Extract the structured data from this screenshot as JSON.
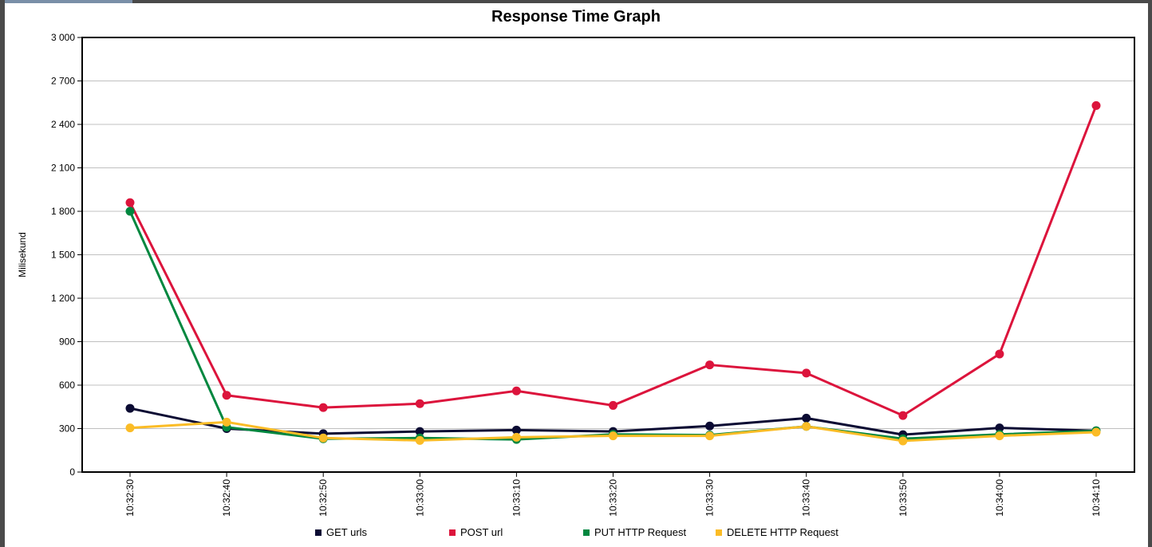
{
  "chart_data": {
    "type": "line",
    "title": "Response Time Graph",
    "xlabel": "",
    "ylabel": "Milisekund",
    "ylim": [
      0,
      3000
    ],
    "yticks": [
      "0",
      "300",
      "600",
      "900",
      "1 200",
      "1 500",
      "1 800",
      "2 100",
      "2 400",
      "2 700",
      "3 000"
    ],
    "ytick_values": [
      0,
      300,
      600,
      900,
      1200,
      1500,
      1800,
      2100,
      2400,
      2700,
      3000
    ],
    "categories": [
      "10:32:30",
      "10:32:40",
      "10:32:50",
      "10:33:00",
      "10:33:10",
      "10:33:20",
      "10:33:30",
      "10:33:40",
      "10:33:50",
      "10:34:00",
      "10:34:10"
    ],
    "grid": true,
    "legend_position": "bottom",
    "series": [
      {
        "name": "GET urls",
        "color": "#0b0b33",
        "values": [
          440,
          300,
          265,
          280,
          290,
          280,
          318,
          372,
          258,
          305,
          285
        ]
      },
      {
        "name": "POST url",
        "color": "#dc143c",
        "values": [
          1860,
          530,
          445,
          472,
          560,
          460,
          740,
          683,
          390,
          815,
          2530
        ]
      },
      {
        "name": "PUT HTTP Request",
        "color": "#00873f",
        "values": [
          1800,
          310,
          230,
          235,
          225,
          260,
          255,
          315,
          230,
          260,
          285
        ]
      },
      {
        "name": "DELETE HTTP Request",
        "color": "#fbbc26",
        "values": [
          305,
          345,
          235,
          218,
          240,
          250,
          250,
          315,
          215,
          250,
          275
        ]
      }
    ]
  }
}
